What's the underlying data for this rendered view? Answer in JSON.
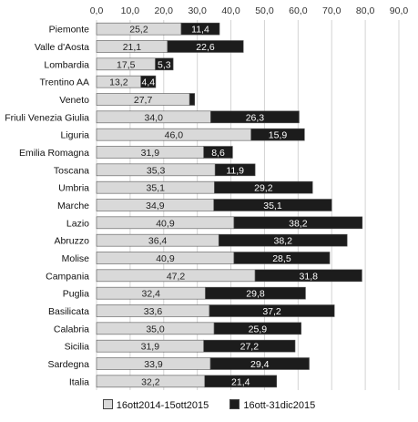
{
  "chart_data": {
    "type": "bar",
    "orientation": "horizontal",
    "stacked": true,
    "categories": [
      "Piemonte",
      "Valle d'Aosta",
      "Lombardia",
      "Trentino AA",
      "Veneto",
      "Friuli Venezia Giulia",
      "Liguria",
      "Emilia Romagna",
      "Toscana",
      "Umbria",
      "Marche",
      "Lazio",
      "Abruzzo",
      "Molise",
      "Campania",
      "Puglia",
      "Basilicata",
      "Calabria",
      "Sicilia",
      "Sardegna",
      "Italia"
    ],
    "series": [
      {
        "name": "16ott2014-15ott2015",
        "color": "#d9d9d9",
        "values": [
          25.2,
          21.1,
          17.5,
          13.2,
          27.7,
          34.0,
          46.0,
          31.9,
          35.3,
          35.1,
          34.9,
          40.9,
          36.4,
          40.9,
          47.2,
          32.4,
          33.6,
          35.0,
          31.9,
          33.9,
          32.2
        ],
        "labels": [
          "25,2",
          "21,1",
          "17,5",
          "13,2",
          "27,7",
          "34,0",
          "46,0",
          "31,9",
          "35,3",
          "35,1",
          "34,9",
          "40,9",
          "36,4",
          "40,9",
          "47,2",
          "32,4",
          "33,6",
          "35,0",
          "31,9",
          "33,9",
          "32,2"
        ]
      },
      {
        "name": "16ott-31dic2015",
        "color": "#1c1c1c",
        "values": [
          11.4,
          22.6,
          5.3,
          4.4,
          1.5,
          26.3,
          15.9,
          8.6,
          11.9,
          29.2,
          35.1,
          38.2,
          38.2,
          28.5,
          31.8,
          29.8,
          37.2,
          25.9,
          27.2,
          29.4,
          21.4
        ],
        "labels": [
          "11,4",
          "22,6",
          "5,3",
          "4,4",
          "",
          "26,3",
          "15,9",
          "8,6",
          "11,9",
          "29,2",
          "35,1",
          "38,2",
          "38,2",
          "28,5",
          "31,8",
          "29,8",
          "37,2",
          "25,9",
          "27,2",
          "29,4",
          "21,4"
        ]
      }
    ],
    "xlim": [
      0,
      90
    ],
    "ticks": [
      "0,0",
      "10,0",
      "20,0",
      "30,0",
      "40,0",
      "50,0",
      "60,0",
      "70,0",
      "80,0",
      "90,0"
    ],
    "xaxis_position": "top",
    "grid": true,
    "legend": "bottom",
    "title": "",
    "xlabel": "",
    "ylabel": ""
  }
}
